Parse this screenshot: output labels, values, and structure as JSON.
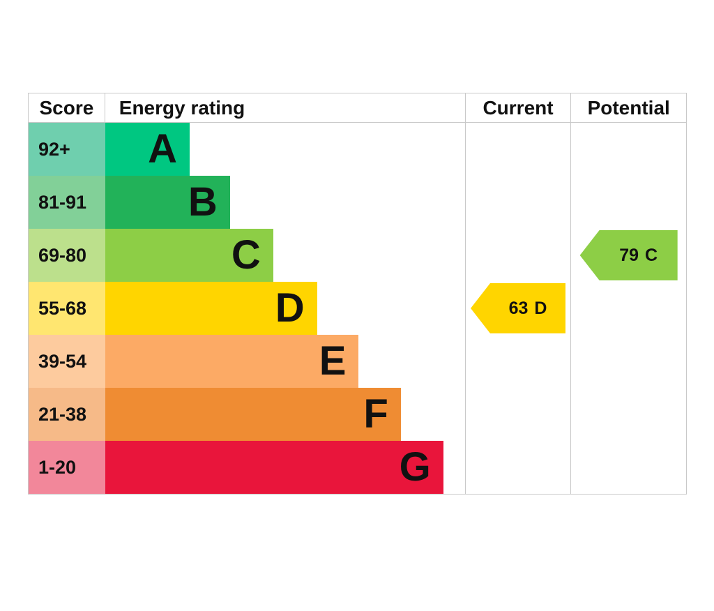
{
  "header": {
    "score": "Score",
    "energy_rating": "Energy rating",
    "current": "Current",
    "potential": "Potential"
  },
  "chart_data": {
    "type": "bar",
    "subtype": "epc-energy-rating",
    "columns": [
      "Score",
      "Energy rating",
      "Current",
      "Potential"
    ],
    "bands": [
      {
        "letter": "A",
        "score": "92+",
        "bar_color": "#00c781",
        "score_color": "#6fcfae",
        "width_pct": 23.5
      },
      {
        "letter": "B",
        "score": "81-91",
        "bar_color": "#22b259",
        "score_color": "#82d098",
        "width_pct": 34.7
      },
      {
        "letter": "C",
        "score": "69-80",
        "bar_color": "#8dce46",
        "score_color": "#bce08c",
        "width_pct": 46.7
      },
      {
        "letter": "D",
        "score": "55-68",
        "bar_color": "#ffd500",
        "score_color": "#ffe670",
        "width_pct": 58.9
      },
      {
        "letter": "E",
        "score": "39-54",
        "bar_color": "#fcaa65",
        "score_color": "#fdcb9e",
        "width_pct": 70.5
      },
      {
        "letter": "F",
        "score": "21-38",
        "bar_color": "#ef8c33",
        "score_color": "#f6ba88",
        "width_pct": 82.2
      },
      {
        "letter": "G",
        "score": "1-20",
        "bar_color": "#e9153b",
        "score_color": "#f2879a",
        "width_pct": 94.0
      }
    ],
    "current": {
      "value": "63",
      "band": "D",
      "color": "#ffd500"
    },
    "potential": {
      "value": "79",
      "band": "C",
      "color": "#8dce46"
    }
  }
}
